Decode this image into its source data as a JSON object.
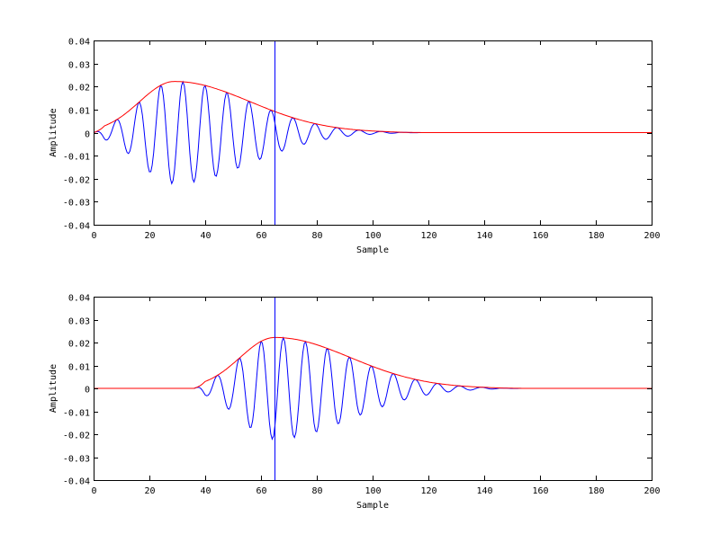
{
  "chart_data": [
    {
      "type": "line",
      "title": "",
      "xlabel": "Sample",
      "ylabel": "Amplitude",
      "xlim": [
        0,
        200
      ],
      "ylim": [
        -0.04,
        0.04
      ],
      "xticks": [
        0,
        20,
        40,
        60,
        80,
        100,
        120,
        140,
        160,
        180,
        200
      ],
      "yticks": [
        "-0.04",
        "-0.03",
        "-0.02",
        "-0.01",
        "0",
        "0.01",
        "0.02",
        "0.03",
        "0.04"
      ],
      "grid": false,
      "vline": {
        "x": 65,
        "color": "#0000ff"
      },
      "signal_shift": 0,
      "series": [
        {
          "name": "signal",
          "color": "#0000ff",
          "description": "oscillating wavelet, period ~8 samples, peaks 0.021 at ~32, troughs -0.022 at ~28, decays to 0 by ~120"
        },
        {
          "name": "envelope",
          "color": "#ff0000",
          "description": "smooth envelope rising from 0 at 0, max ~0.022 at ~29, decaying to ~0 at ~120"
        }
      ]
    },
    {
      "type": "line",
      "title": "",
      "xlabel": "Sample",
      "ylabel": "Amplitude",
      "xlim": [
        0,
        200
      ],
      "ylim": [
        -0.04,
        0.04
      ],
      "xticks": [
        0,
        20,
        40,
        60,
        80,
        100,
        120,
        140,
        160,
        180,
        200
      ],
      "yticks": [
        "-0.04",
        "-0.03",
        "-0.02",
        "-0.01",
        "0",
        "0.01",
        "0.02",
        "0.03",
        "0.04"
      ],
      "grid": false,
      "vline": {
        "x": 65,
        "color": "#0000ff"
      },
      "signal_shift": 36,
      "series": [
        {
          "name": "signal",
          "color": "#0000ff",
          "description": "same wavelet shifted by ~36 samples; starts ~36, peak ~0.022 at ~64, ends ~156"
        },
        {
          "name": "envelope",
          "color": "#ff0000",
          "description": "envelope max ~0.022 at ~65, zero before ~36 and after ~156"
        }
      ]
    }
  ],
  "plots": [
    {
      "xlabel": "Sample",
      "ylabel": "Amplitude"
    },
    {
      "xlabel": "Sample",
      "ylabel": "Amplitude"
    }
  ]
}
